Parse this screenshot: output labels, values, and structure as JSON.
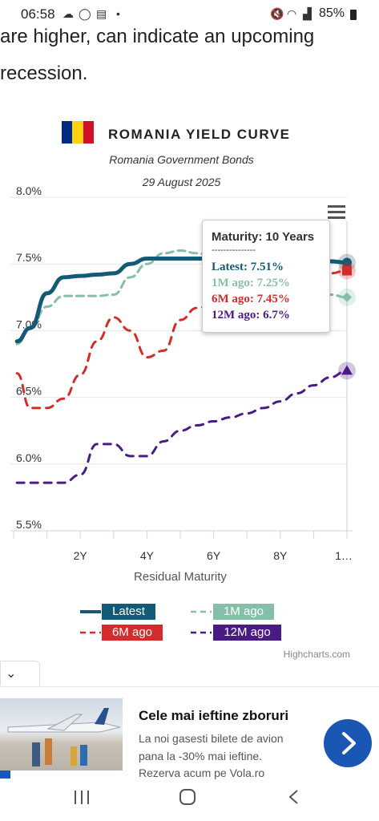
{
  "status_bar": {
    "time": "06:58",
    "battery": "85%",
    "left_icons": [
      "cloud-icon",
      "whatsapp-icon",
      "news-icon",
      "dot-icon"
    ],
    "right_icons": [
      "mute-icon",
      "wifi-icon",
      "signal-icon",
      "battery-icon"
    ]
  },
  "article": {
    "line1": "are higher, can indicate an upcoming",
    "line2": "recession."
  },
  "chart_header": {
    "title": "ROMANIA YIELD CURVE",
    "subtitle": "Romania Government Bonds",
    "date": "29 August 2025",
    "flag_colors": [
      "#002B7F",
      "#FCD116",
      "#CE1126"
    ]
  },
  "tooltip": {
    "header": "Maturity: 10 Years",
    "separator": "---------------",
    "rows": [
      {
        "text": "Latest: 7.51%",
        "color": "#125a75"
      },
      {
        "text": "1M ago: 7.25%",
        "color": "#86bfa8"
      },
      {
        "text": "6M ago: 7.45%",
        "color": "#d62b2b"
      },
      {
        "text": "12M ago: 6.7%",
        "color": "#4a1a86"
      }
    ]
  },
  "chart_data": {
    "type": "line",
    "xlabel": "Residual Maturity",
    "ylabel": "",
    "x_ticks": [
      "2Y",
      "4Y",
      "6Y",
      "8Y",
      "1…"
    ],
    "ylim": [
      5.5,
      8.0
    ],
    "y_ticks": [
      "5.5%",
      "6.0%",
      "6.5%",
      "7.0%",
      "7.5%",
      "8.0%"
    ],
    "x": [
      0.1,
      0.5,
      1,
      1.5,
      2,
      2.5,
      3,
      3.5,
      4,
      4.5,
      5,
      5.5,
      6,
      6.5,
      7,
      7.5,
      8,
      8.5,
      9,
      9.5,
      10
    ],
    "series": [
      {
        "name": "Latest",
        "color": "#125a75",
        "dash": "solid",
        "values": [
          6.92,
          7.02,
          7.28,
          7.4,
          7.41,
          7.42,
          7.43,
          7.5,
          7.54,
          7.54,
          7.54,
          7.54,
          7.54,
          7.54,
          7.54,
          7.53,
          7.53,
          7.53,
          7.52,
          7.52,
          7.51
        ]
      },
      {
        "name": "1M ago",
        "color": "#86bfa8",
        "dash": "dash",
        "values": [
          6.9,
          7.02,
          7.18,
          7.26,
          7.26,
          7.26,
          7.27,
          7.4,
          7.5,
          7.58,
          7.6,
          7.58,
          7.55,
          7.5,
          7.45,
          7.4,
          7.36,
          7.32,
          7.29,
          7.27,
          7.25
        ]
      },
      {
        "name": "6M ago",
        "color": "#d62b2b",
        "dash": "dash",
        "values": [
          6.68,
          6.42,
          6.42,
          6.49,
          6.67,
          6.92,
          7.1,
          7.0,
          6.8,
          6.85,
          7.08,
          7.17,
          7.2,
          7.24,
          7.28,
          7.31,
          7.34,
          7.37,
          7.4,
          7.43,
          7.45
        ]
      },
      {
        "name": "12M ago",
        "color": "#4a1a86",
        "dash": "dash",
        "values": [
          5.86,
          5.86,
          5.86,
          5.86,
          5.92,
          6.15,
          6.15,
          6.06,
          6.06,
          6.17,
          6.25,
          6.29,
          6.32,
          6.35,
          6.38,
          6.42,
          6.47,
          6.53,
          6.59,
          6.65,
          6.7
        ]
      }
    ],
    "grid": true,
    "legend_placement": "bottom",
    "tooltip_x": 10
  },
  "legend": {
    "latest": "Latest",
    "one_month": "1M ago",
    "six_month": "6M ago",
    "twelve_month": "12M ago"
  },
  "credits": "Highcharts.com",
  "ad": {
    "title": "Cele mai ieftine zboruri",
    "desc_line1": "La noi gasesti bilete de avion",
    "desc_line2": "pana la -30% mai ieftine.",
    "desc_line3": "Rezerva acum pe Vola.ro"
  }
}
